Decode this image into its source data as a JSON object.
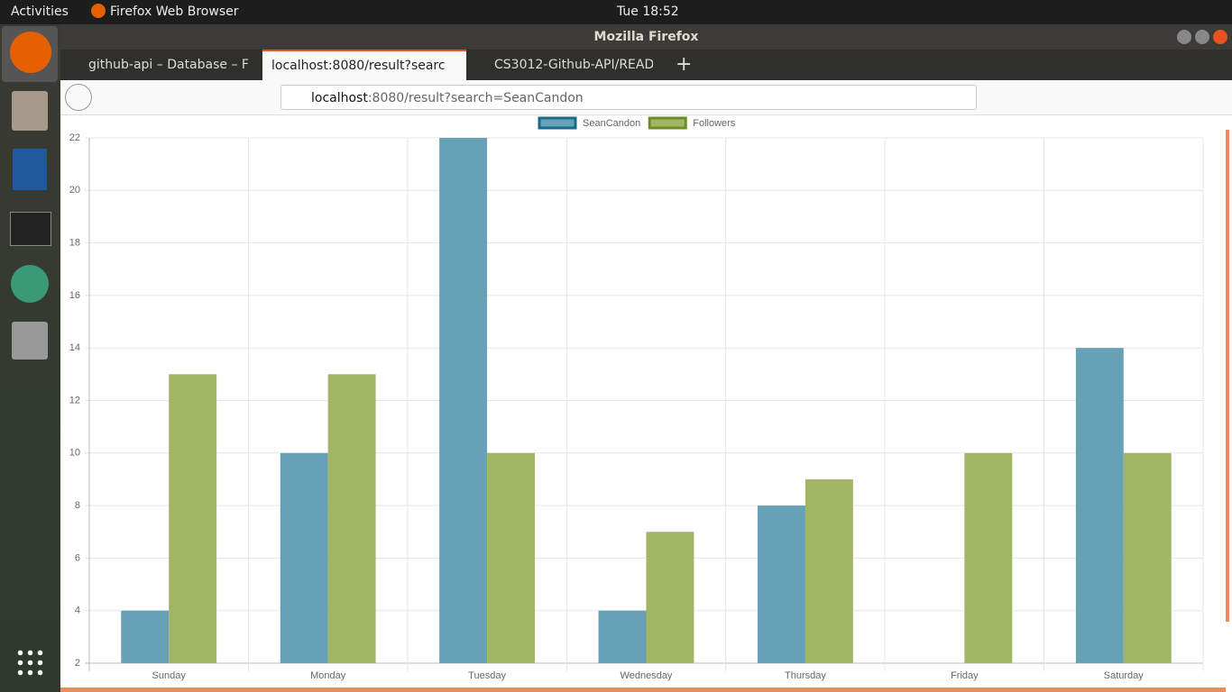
{
  "topbar": {
    "activities": "Activities",
    "app": "Firefox Web Browser",
    "clock": "Tue 18:52"
  },
  "window": {
    "title": "Mozilla Firefox"
  },
  "tabs": [
    "github-api – Database – F",
    "localhost:8080/result?searc",
    "CS3012-Github-API/READ"
  ],
  "url": {
    "host": "localhost",
    "rest": ":8080/result?search=SeanCandon"
  },
  "chart_data": {
    "type": "bar",
    "categories": [
      "Sunday",
      "Monday",
      "Tuesday",
      "Wednesday",
      "Thursday",
      "Friday",
      "Saturday"
    ],
    "series": [
      {
        "name": "SeanCandon",
        "color": "#67a1b8",
        "border": "#1a6a8a",
        "values": [
          4,
          10,
          22,
          4,
          8,
          2,
          14
        ]
      },
      {
        "name": "Followers",
        "color": "#a2b564",
        "border": "#6b8e23",
        "values": [
          13,
          13,
          10,
          7,
          9,
          10,
          10
        ]
      }
    ],
    "ylim": [
      2,
      22
    ],
    "yticks": [
      2,
      4,
      6,
      8,
      10,
      12,
      14,
      16,
      18,
      20,
      22
    ],
    "grid": true,
    "legend": "top"
  }
}
